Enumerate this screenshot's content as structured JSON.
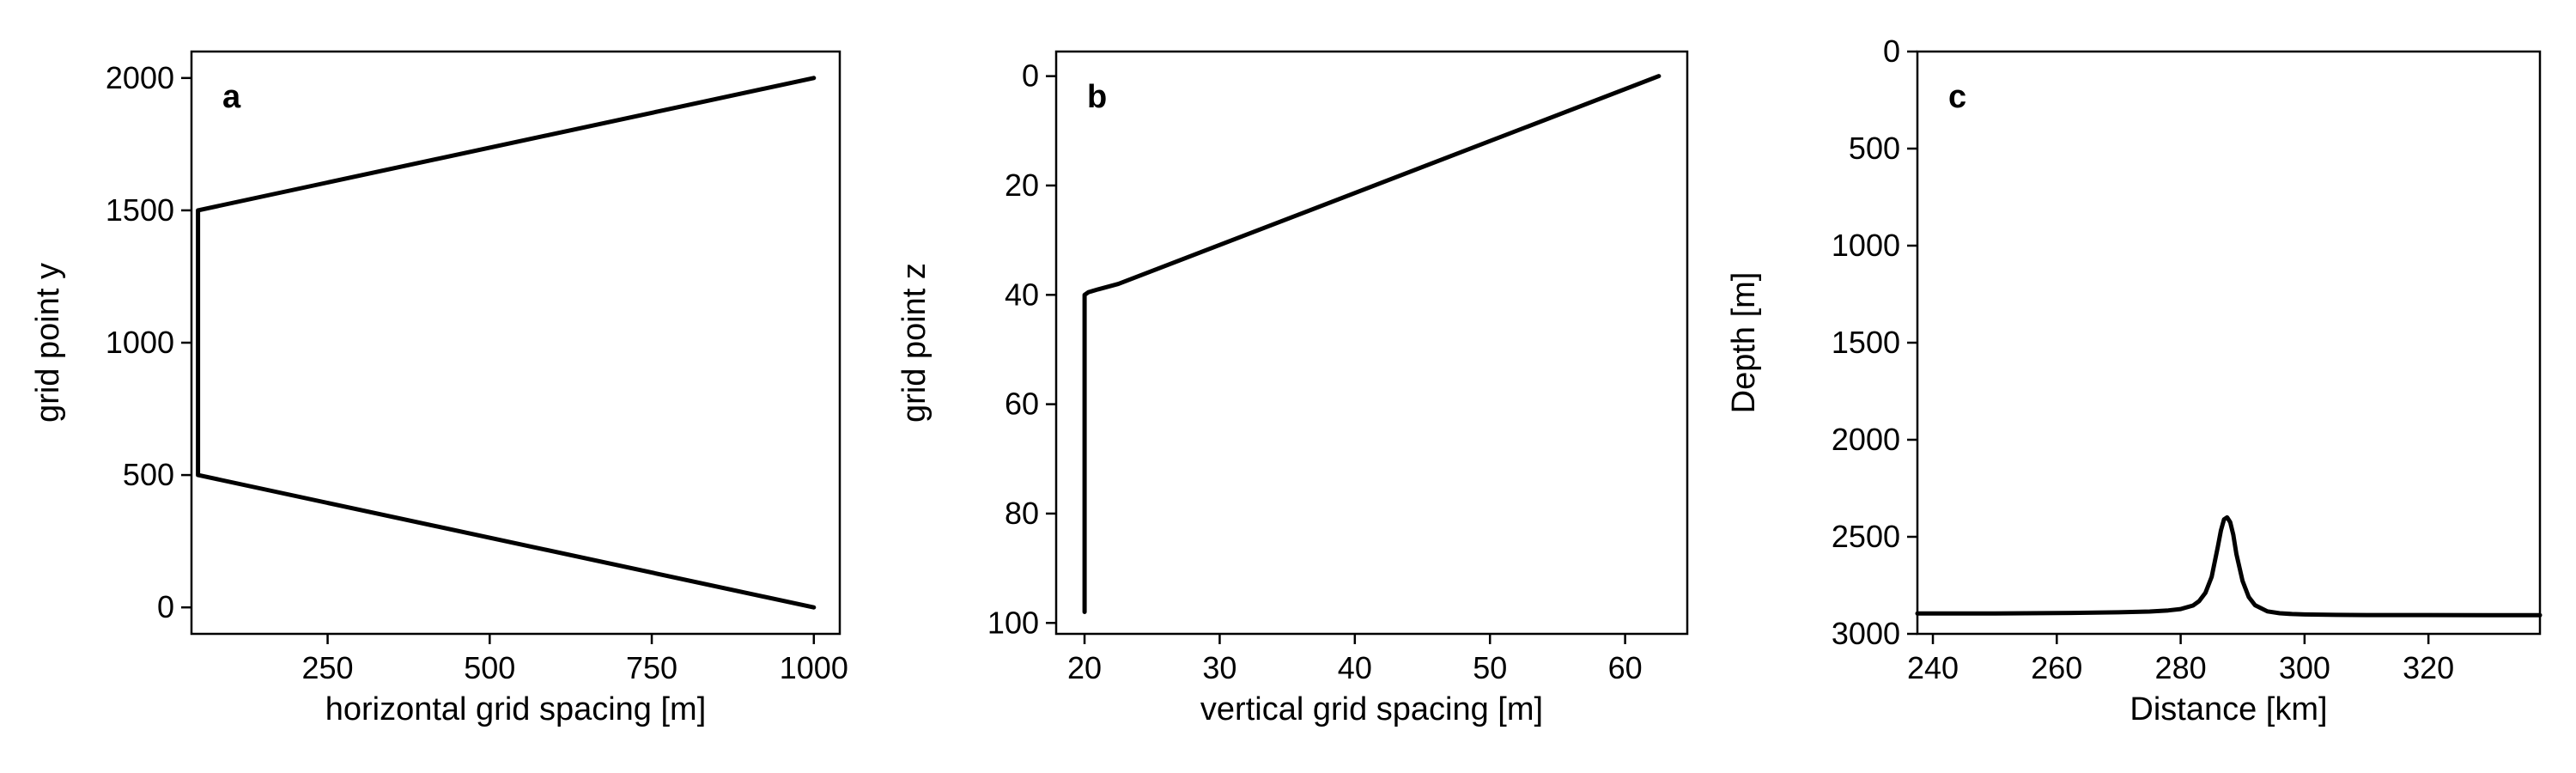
{
  "chart_data": [
    {
      "type": "line",
      "panel_label": "a",
      "xlabel": "horizontal grid spacing [m]",
      "ylabel": "grid point y",
      "xlim": [
        40,
        1040
      ],
      "ylim": [
        -100,
        2100
      ],
      "y_inverted": false,
      "xticks": [
        250,
        500,
        750,
        1000
      ],
      "yticks": [
        0,
        500,
        1000,
        1500,
        2000
      ],
      "grid": false,
      "series": [
        {
          "color": "#000000",
          "x": [
            1000,
            50,
            50,
            1000
          ],
          "y": [
            0,
            500,
            1500,
            2000
          ]
        }
      ]
    },
    {
      "type": "line",
      "panel_label": "b",
      "xlabel": "vertical grid spacing [m]",
      "ylabel": "grid point z",
      "xlim": [
        17.9,
        64.6
      ],
      "ylim": [
        -4.5,
        102
      ],
      "y_inverted": true,
      "xticks": [
        20,
        30,
        40,
        50,
        60
      ],
      "yticks": [
        0,
        20,
        40,
        60,
        80,
        100
      ],
      "grid": false,
      "series": [
        {
          "color": "#000000",
          "x": [
            62.5,
            22.5,
            21.0,
            20.3,
            20.0,
            20.0
          ],
          "y": [
            0,
            38,
            39,
            39.5,
            40,
            98
          ]
        }
      ]
    },
    {
      "type": "line",
      "panel_label": "c",
      "xlabel": "Distance [km]",
      "ylabel": "Depth [m]",
      "xlim": [
        237.5,
        338
      ],
      "ylim": [
        0,
        3000
      ],
      "y_inverted": true,
      "xticks": [
        240,
        260,
        280,
        300,
        320
      ],
      "yticks": [
        0,
        500,
        1000,
        1500,
        2000,
        2500,
        3000
      ],
      "grid": false,
      "series": [
        {
          "color": "#000000",
          "x": [
            237.5,
            250,
            260,
            270,
            275,
            278,
            280,
            282,
            283,
            284,
            285,
            286,
            286.5,
            287,
            287.5,
            288,
            288.5,
            289,
            290,
            291,
            292,
            294,
            296,
            298,
            300,
            305,
            310,
            320,
            330,
            338
          ],
          "y": [
            2895,
            2895,
            2893,
            2889,
            2885,
            2879,
            2872,
            2854,
            2831,
            2789,
            2706,
            2551,
            2467,
            2410,
            2400,
            2425,
            2490,
            2589,
            2728,
            2810,
            2852,
            2884,
            2894,
            2898,
            2900,
            2902,
            2903,
            2903,
            2904,
            2904
          ]
        }
      ]
    }
  ]
}
